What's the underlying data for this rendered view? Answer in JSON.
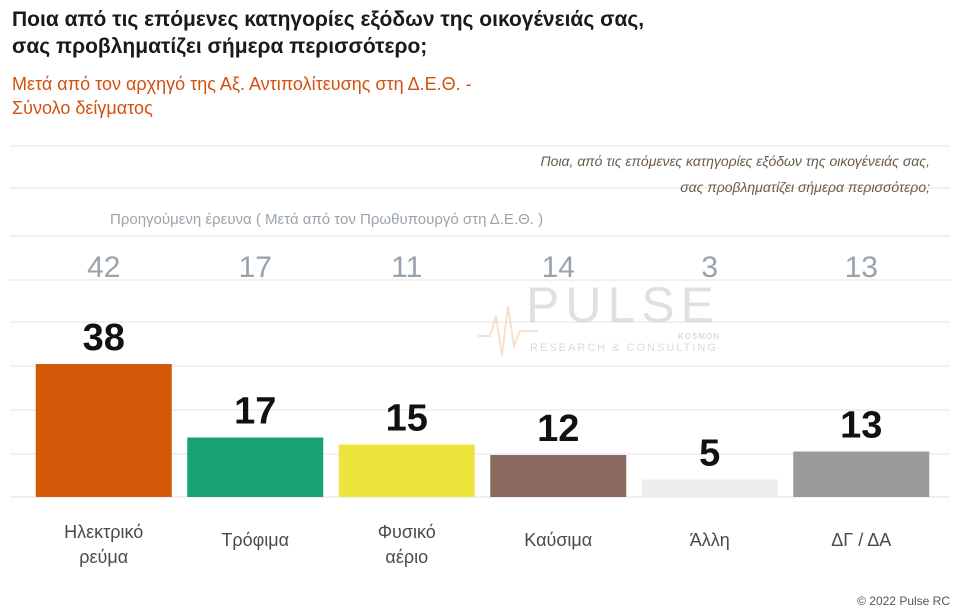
{
  "header": {
    "title_line1": "Ποια από τις επόμενες κατηγορίες εξόδων της οικογένειάς σας,",
    "title_line2": "σας προβληματίζει σήμερα περισσότερο;",
    "subtitle_line1": "Μετά από τον αρχηγό της Αξ. Αντιπολίτευσης στη Δ.Ε.Θ. -",
    "subtitle_line2": "Σύνολο δείγματος"
  },
  "question": {
    "line1": "Ποια, από τις επόμενες κατηγορίες εξόδων της οικογένειάς σας,",
    "line2": "σας προβληματίζει σήμερα περισσότερο;"
  },
  "previous": {
    "label": "Προηγούμενη έρευνα  ( Μετά από τον Πρωθυπουργό στη Δ.Ε.Θ. )"
  },
  "watermark": {
    "word": "PULSE",
    "sub": "RESEARCH & CONSULTING",
    "kosmon": "KOSMON"
  },
  "footer": {
    "copyright": "© 2022 Pulse RC"
  },
  "chart_data": {
    "type": "bar",
    "categories": [
      [
        "Ηλεκτρικό",
        "ρεύμα"
      ],
      [
        "Τρόφιμα"
      ],
      [
        "Φυσικό",
        "αέριο"
      ],
      [
        "Καύσιμα"
      ],
      [
        "Άλλη"
      ],
      [
        "ΔΓ / ΔΑ"
      ]
    ],
    "values": [
      38,
      17,
      15,
      12,
      5,
      13
    ],
    "previous_values": [
      42,
      17,
      11,
      14,
      3,
      13
    ],
    "colors": [
      "#d45a0a",
      "#16a275",
      "#ece63c",
      "#8a6a5e",
      "#ededed",
      "#9a9a9a"
    ],
    "grid": true
  }
}
